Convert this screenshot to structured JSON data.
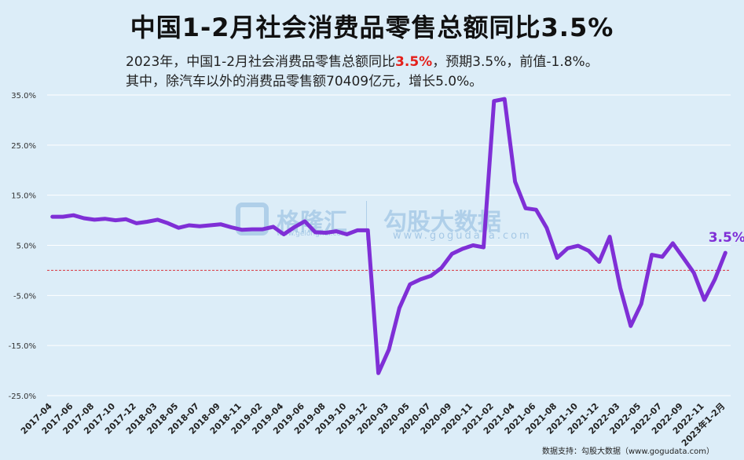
{
  "title": "中国1-2月社会消费品零售总额同比3.5%",
  "subtitle": {
    "line1_prefix": "2023年，中国1-2月社会消费品零售总额同比",
    "line1_highlight": "3.5%",
    "line1_suffix": "，预期3.5%，前值-1.8%。",
    "line2": "其中，除汽车以外的消费品零售额70409亿元，增长5.0%。"
  },
  "watermark": {
    "brand1": "格隆汇",
    "brand1_url": "www.gelonghui.com",
    "brand2": "勾股大数据",
    "brand2_url": "www.gogudata.com"
  },
  "source": "数据支持：勾股大数据（www.gogudata.com）",
  "colors": {
    "background": "#dcedf8",
    "line": "#7f2fd6",
    "zero_line": "#d9363e",
    "grid": "#ffffff",
    "highlight": "#e4201b"
  },
  "chart_data": {
    "type": "line",
    "ylim": [
      -25,
      35
    ],
    "yticks": [
      35,
      25,
      15,
      5,
      -5,
      -15,
      -25
    ],
    "ytick_labels": [
      "35.0%",
      "25.0%",
      "15.0%",
      "5.0%",
      "-5.0%",
      "-15.0%",
      "-25.0%"
    ],
    "grid": true,
    "reference_line": 0,
    "end_label": "3.5%",
    "x": [
      "2017-04",
      "2017-05",
      "2017-06",
      "2017-07",
      "2017-08",
      "2017-09",
      "2017-10",
      "2017-11",
      "2017-12",
      "2018-02",
      "2018-03",
      "2018-04",
      "2018-05",
      "2018-06",
      "2018-07",
      "2018-08",
      "2018-09",
      "2018-10",
      "2018-11",
      "2018-12",
      "2019-02",
      "2019-03",
      "2019-04",
      "2019-05",
      "2019-06",
      "2019-07",
      "2019-08",
      "2019-09",
      "2019-10",
      "2019-11",
      "2019-12",
      "2020-02",
      "2020-03",
      "2020-04",
      "2020-05",
      "2020-06",
      "2020-07",
      "2020-08",
      "2020-09",
      "2020-10",
      "2020-11",
      "2020-12",
      "2021-02",
      "2021-03",
      "2021-04",
      "2021-05",
      "2021-06",
      "2021-07",
      "2021-08",
      "2021-09",
      "2021-10",
      "2021-11",
      "2021-12",
      "2022-02",
      "2022-03",
      "2022-04",
      "2022-05",
      "2022-06",
      "2022-07",
      "2022-08",
      "2022-09",
      "2022-10",
      "2022-11",
      "2022-12",
      "2023年1-2月"
    ],
    "xtick_labels": [
      "2017-04",
      "2017-06",
      "2017-08",
      "2017-10",
      "2017-12",
      "2018-03",
      "2018-05",
      "2018-07",
      "2018-09",
      "2018-11",
      "2019-02",
      "2019-04",
      "2019-06",
      "2019-08",
      "2019-10",
      "2019-12",
      "2020-03",
      "2020-05",
      "2020-07",
      "2020-09",
      "2020-11",
      "2021-02",
      "2021-04",
      "2021-06",
      "2021-08",
      "2021-10",
      "2021-12",
      "2022-03",
      "2022-05",
      "2022-07",
      "2022-09",
      "2022-11",
      "2023年1-2月"
    ],
    "series": [
      {
        "values": [
          10.7,
          10.7,
          11.0,
          10.4,
          10.1,
          10.3,
          10.0,
          10.2,
          9.4,
          9.7,
          10.1,
          9.4,
          8.5,
          9.0,
          8.8,
          9.0,
          9.2,
          8.6,
          8.1,
          8.2,
          8.2,
          8.7,
          7.2,
          8.6,
          9.8,
          7.6,
          7.5,
          7.8,
          7.2,
          8.0,
          8.0,
          -20.5,
          -15.8,
          -7.5,
          -2.8,
          -1.8,
          -1.1,
          0.5,
          3.3,
          4.3,
          5.0,
          4.6,
          33.8,
          34.2,
          17.7,
          12.4,
          12.1,
          8.5,
          2.5,
          4.4,
          4.9,
          3.9,
          1.7,
          6.7,
          -3.5,
          -11.1,
          -6.7,
          3.1,
          2.7,
          5.4,
          2.5,
          -0.5,
          -5.9,
          -1.8,
          3.5
        ]
      }
    ]
  }
}
